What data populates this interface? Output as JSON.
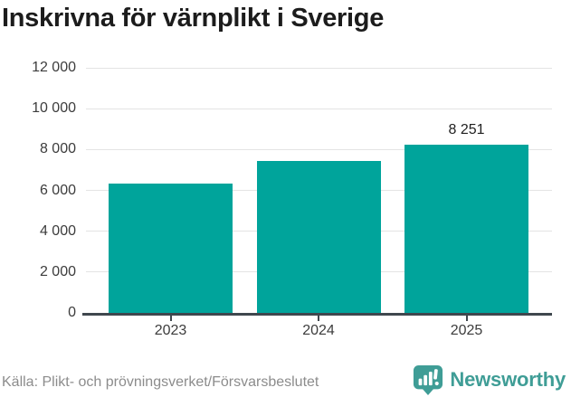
{
  "chart_data": {
    "type": "bar",
    "title": "Inskrivna för värnplikt i Sverige",
    "categories": [
      "2023",
      "2024",
      "2025"
    ],
    "values": [
      6350,
      7440,
      8251
    ],
    "bar_value_labels": [
      "",
      "",
      "8 251"
    ],
    "ylim": [
      0,
      12000
    ],
    "yticks": [
      0,
      2000,
      4000,
      6000,
      8000,
      10000,
      12000
    ],
    "ytick_labels": [
      "0",
      "2 000",
      "4 000",
      "6 000",
      "8 000",
      "10 000",
      "12 000"
    ],
    "xlabel": "",
    "ylabel": "",
    "grid": true,
    "legend_position": "none",
    "bar_color": "#00a49b"
  },
  "footer": {
    "source": "Källa: Plikt- och prövningsverket/Försvarsbeslutet",
    "brand": "Newsworthy"
  },
  "colors": {
    "bar": "#00a49b",
    "brand_teal": "#3f9d96",
    "gridline": "#e4e4e4",
    "axis_line": "#3f474e",
    "title_text": "#1c1c1c",
    "axis_text": "#3c3c3c",
    "source_text": "#8c8c8c",
    "background": "#ffffff"
  }
}
